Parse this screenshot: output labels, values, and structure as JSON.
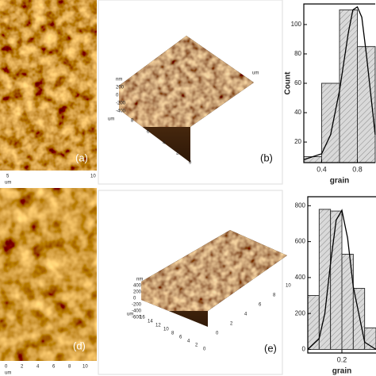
{
  "panels": {
    "a": "(a)",
    "b": "(b)",
    "d": "(d)",
    "e": "(e)"
  },
  "afm_a": {
    "ticks": [
      "5",
      "10"
    ],
    "unit": "um"
  },
  "afm_b": {
    "z_unit": "nm",
    "z_ticks": [
      "200",
      "0",
      "-200",
      "-400"
    ],
    "unit": "um",
    "ticks": [
      "8",
      "6",
      "4",
      "2",
      "0"
    ],
    "unit2": "um"
  },
  "afm_d": {
    "ticks": [
      "0",
      "2",
      "4",
      "6",
      "8",
      "10"
    ],
    "unit": "um"
  },
  "afm_e": {
    "z_unit": "nm",
    "z_ticks": [
      "400",
      "200",
      "0",
      "-200",
      "-400",
      "-600"
    ],
    "unit": "um",
    "ticks": [
      "16",
      "14",
      "12",
      "10",
      "8",
      "6",
      "4",
      "2",
      "0"
    ],
    "ticks2": [
      "0",
      "2",
      "4",
      "6",
      "8",
      "10"
    ]
  },
  "chart_data": [
    {
      "type": "histogram",
      "ylabel": "Count",
      "xlabel": "grain",
      "bins": [
        0.2,
        0.4,
        0.6,
        0.8,
        1.0
      ],
      "values": [
        10,
        60,
        110,
        85
      ],
      "color": "#d9d9d9",
      "hatch": true,
      "xlim": [
        0.2,
        1.0
      ],
      "xticks": [
        0.4,
        0.8
      ],
      "ylim": [
        6,
        114
      ],
      "yticks": [
        20,
        40,
        60,
        80,
        100
      ],
      "fit": {
        "x": [
          0.2,
          0.4,
          0.5,
          0.6,
          0.7,
          0.75,
          0.8,
          0.85,
          0.9,
          1.0
        ],
        "values": [
          8,
          12,
          25,
          55,
          95,
          110,
          112,
          105,
          80,
          25
        ]
      }
    },
    {
      "type": "histogram",
      "xlabel": "grain",
      "bins": [
        0.05,
        0.1,
        0.15,
        0.2,
        0.25,
        0.3,
        0.35
      ],
      "values": [
        300,
        780,
        770,
        530,
        340,
        120
      ],
      "color": "#d9d9d9",
      "hatch": true,
      "xlim": [
        0.05,
        0.35
      ],
      "xticks": [
        0.2
      ],
      "ylim": [
        -20,
        850
      ],
      "yticks": [
        0,
        200,
        400,
        600,
        800
      ],
      "fit": {
        "x": [
          0.05,
          0.1,
          0.125,
          0.15,
          0.175,
          0.2,
          0.225,
          0.25,
          0.3,
          0.35
        ],
        "values": [
          0,
          60,
          200,
          480,
          720,
          775,
          620,
          350,
          40,
          0
        ]
      }
    }
  ]
}
